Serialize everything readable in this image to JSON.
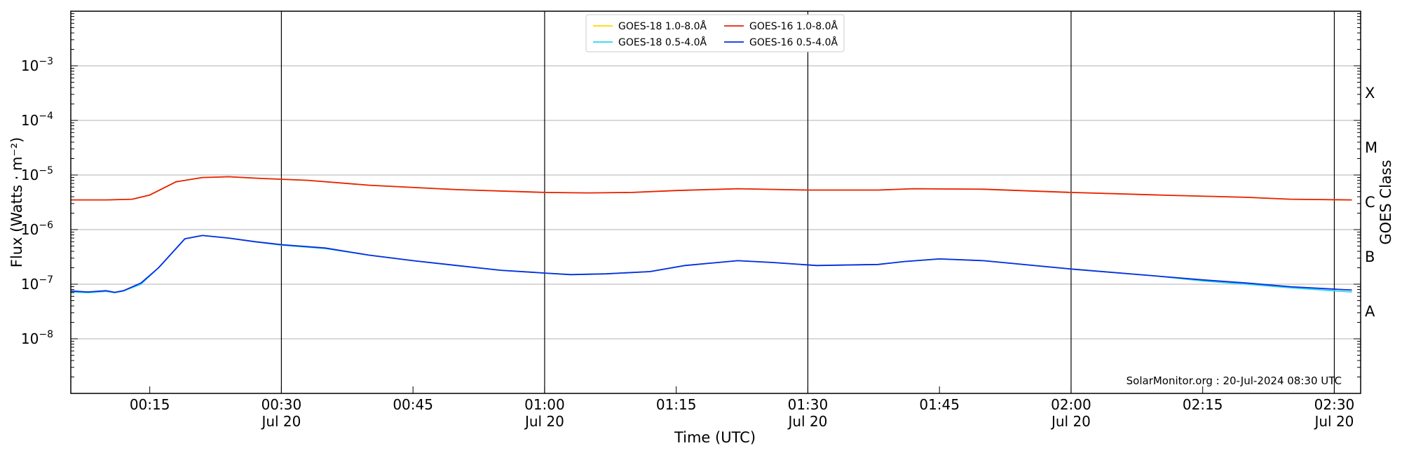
{
  "chart_data": {
    "type": "line",
    "xlabel": "Time (UTC)",
    "ylabel": "Flux (Watts · m⁻²)",
    "y2label": "GOES Class",
    "yscale": "log",
    "ylim": [
      1e-09,
      0.01
    ],
    "xlim": [
      "00:06",
      "02:33"
    ],
    "grid": "horizontal at decades, vertical at half-hours",
    "legend_placement": "top-center",
    "credit": "SolarMonitor.org : 20-Jul-2024 08:30 UTC",
    "y_ticks": [
      {
        "value": 1e-08,
        "base": "10",
        "exp": "−8"
      },
      {
        "value": 1e-07,
        "base": "10",
        "exp": "−7"
      },
      {
        "value": 1e-06,
        "base": "10",
        "exp": "−6"
      },
      {
        "value": 1e-05,
        "base": "10",
        "exp": "−5"
      },
      {
        "value": 0.0001,
        "base": "10",
        "exp": "−4"
      },
      {
        "value": 0.001,
        "base": "10",
        "exp": "−3"
      }
    ],
    "x_ticks": [
      {
        "time": "00:15",
        "label": "00:15",
        "date": ""
      },
      {
        "time": "00:30",
        "label": "00:30",
        "date": "Jul 20"
      },
      {
        "time": "00:45",
        "label": "00:45",
        "date": ""
      },
      {
        "time": "01:00",
        "label": "01:00",
        "date": "Jul 20"
      },
      {
        "time": "01:15",
        "label": "01:15",
        "date": ""
      },
      {
        "time": "01:30",
        "label": "01:30",
        "date": "Jul 20"
      },
      {
        "time": "01:45",
        "label": "01:45",
        "date": ""
      },
      {
        "time": "02:00",
        "label": "02:00",
        "date": "Jul 20"
      },
      {
        "time": "02:15",
        "label": "02:15",
        "date": ""
      },
      {
        "time": "02:30",
        "label": "02:30",
        "date": "Jul 20"
      }
    ],
    "goes_classes": [
      {
        "label": "A",
        "value": 3.16e-08
      },
      {
        "label": "B",
        "value": 3.16e-07
      },
      {
        "label": "C",
        "value": 3.16e-06
      },
      {
        "label": "M",
        "value": 3.16e-05
      },
      {
        "label": "X",
        "value": 0.000316
      }
    ],
    "series": [
      {
        "name": "GOES-18 1.0-8.0Å",
        "color": "#ffd700",
        "points": [
          [
            "00:06",
            3.5e-06
          ],
          [
            "00:10",
            3.5e-06
          ],
          [
            "00:13",
            3.6e-06
          ],
          [
            "00:15",
            4.3e-06
          ],
          [
            "00:18",
            7.5e-06
          ],
          [
            "00:21",
            9e-06
          ],
          [
            "00:24",
            9.3e-06
          ],
          [
            "00:28",
            8.6e-06
          ],
          [
            "00:33",
            8e-06
          ],
          [
            "00:40",
            6.5e-06
          ],
          [
            "00:50",
            5.4e-06
          ],
          [
            "01:00",
            4.8e-06
          ],
          [
            "01:05",
            4.7e-06
          ],
          [
            "01:10",
            4.8e-06
          ],
          [
            "01:15",
            5.2e-06
          ],
          [
            "01:22",
            5.6e-06
          ],
          [
            "01:30",
            5.3e-06
          ],
          [
            "01:38",
            5.3e-06
          ],
          [
            "01:42",
            5.6e-06
          ],
          [
            "01:50",
            5.5e-06
          ],
          [
            "02:00",
            4.8e-06
          ],
          [
            "02:10",
            4.3e-06
          ],
          [
            "02:20",
            3.9e-06
          ],
          [
            "02:25",
            3.6e-06
          ],
          [
            "02:32",
            3.5e-06
          ]
        ]
      },
      {
        "name": "GOES-16 1.0-8.0Å",
        "color": "#e8200c",
        "points": [
          [
            "00:06",
            3.5e-06
          ],
          [
            "00:10",
            3.5e-06
          ],
          [
            "00:13",
            3.6e-06
          ],
          [
            "00:15",
            4.3e-06
          ],
          [
            "00:18",
            7.5e-06
          ],
          [
            "00:21",
            9e-06
          ],
          [
            "00:24",
            9.3e-06
          ],
          [
            "00:28",
            8.6e-06
          ],
          [
            "00:33",
            8e-06
          ],
          [
            "00:40",
            6.5e-06
          ],
          [
            "00:50",
            5.4e-06
          ],
          [
            "01:00",
            4.8e-06
          ],
          [
            "01:05",
            4.7e-06
          ],
          [
            "01:10",
            4.8e-06
          ],
          [
            "01:15",
            5.2e-06
          ],
          [
            "01:22",
            5.6e-06
          ],
          [
            "01:30",
            5.3e-06
          ],
          [
            "01:38",
            5.3e-06
          ],
          [
            "01:42",
            5.6e-06
          ],
          [
            "01:50",
            5.5e-06
          ],
          [
            "02:00",
            4.8e-06
          ],
          [
            "02:10",
            4.3e-06
          ],
          [
            "02:20",
            3.9e-06
          ],
          [
            "02:25",
            3.6e-06
          ],
          [
            "02:32",
            3.5e-06
          ]
        ]
      },
      {
        "name": "GOES-18 0.5-4.0Å",
        "color": "#2ad4f0",
        "points": [
          [
            "00:06",
            7.2e-08
          ],
          [
            "00:08",
            7e-08
          ],
          [
            "00:10",
            7.4e-08
          ],
          [
            "00:11",
            7e-08
          ],
          [
            "00:12",
            7.5e-08
          ],
          [
            "00:14",
            1e-07
          ],
          [
            "00:16",
            2e-07
          ],
          [
            "00:18",
            4.5e-07
          ],
          [
            "00:19",
            6.8e-07
          ],
          [
            "00:21",
            7.8e-07
          ],
          [
            "00:24",
            7e-07
          ],
          [
            "00:27",
            6e-07
          ],
          [
            "00:30",
            5.2e-07
          ],
          [
            "00:35",
            4.5e-07
          ],
          [
            "00:40",
            3.4e-07
          ],
          [
            "00:45",
            2.7e-07
          ],
          [
            "00:50",
            2.2e-07
          ],
          [
            "00:55",
            1.8e-07
          ],
          [
            "01:00",
            1.6e-07
          ],
          [
            "01:03",
            1.5e-07
          ],
          [
            "01:07",
            1.55e-07
          ],
          [
            "01:12",
            1.7e-07
          ],
          [
            "01:16",
            2.2e-07
          ],
          [
            "01:22",
            2.7e-07
          ],
          [
            "01:26",
            2.5e-07
          ],
          [
            "01:31",
            2.2e-07
          ],
          [
            "01:38",
            2.3e-07
          ],
          [
            "01:41",
            2.6e-07
          ],
          [
            "01:45",
            2.9e-07
          ],
          [
            "01:50",
            2.7e-07
          ],
          [
            "02:00",
            1.9e-07
          ],
          [
            "02:10",
            1.4e-07
          ],
          [
            "02:15",
            1.15e-07
          ],
          [
            "02:20",
            1e-07
          ],
          [
            "02:25",
            8.6e-08
          ],
          [
            "02:32",
            7.2e-08
          ]
        ]
      },
      {
        "name": "GOES-16 0.5-4.0Å",
        "color": "#0a2de0",
        "points": [
          [
            "00:06",
            7.5e-08
          ],
          [
            "00:08",
            7.2e-08
          ],
          [
            "00:10",
            7.6e-08
          ],
          [
            "00:11",
            7.1e-08
          ],
          [
            "00:12",
            7.6e-08
          ],
          [
            "00:14",
            1.05e-07
          ],
          [
            "00:16",
            2e-07
          ],
          [
            "00:18",
            4.5e-07
          ],
          [
            "00:19",
            6.8e-07
          ],
          [
            "00:21",
            7.8e-07
          ],
          [
            "00:24",
            7e-07
          ],
          [
            "00:27",
            6e-07
          ],
          [
            "00:30",
            5.3e-07
          ],
          [
            "00:35",
            4.6e-07
          ],
          [
            "00:40",
            3.4e-07
          ],
          [
            "00:45",
            2.7e-07
          ],
          [
            "00:50",
            2.2e-07
          ],
          [
            "00:55",
            1.8e-07
          ],
          [
            "01:00",
            1.6e-07
          ],
          [
            "01:03",
            1.5e-07
          ],
          [
            "01:07",
            1.55e-07
          ],
          [
            "01:12",
            1.7e-07
          ],
          [
            "01:16",
            2.2e-07
          ],
          [
            "01:22",
            2.7e-07
          ],
          [
            "01:26",
            2.5e-07
          ],
          [
            "01:31",
            2.2e-07
          ],
          [
            "01:38",
            2.3e-07
          ],
          [
            "01:41",
            2.6e-07
          ],
          [
            "01:45",
            2.9e-07
          ],
          [
            "01:50",
            2.7e-07
          ],
          [
            "02:00",
            1.9e-07
          ],
          [
            "02:10",
            1.4e-07
          ],
          [
            "02:15",
            1.2e-07
          ],
          [
            "02:20",
            1.05e-07
          ],
          [
            "02:25",
            9e-08
          ],
          [
            "02:32",
            7.8e-08
          ]
        ]
      }
    ]
  }
}
